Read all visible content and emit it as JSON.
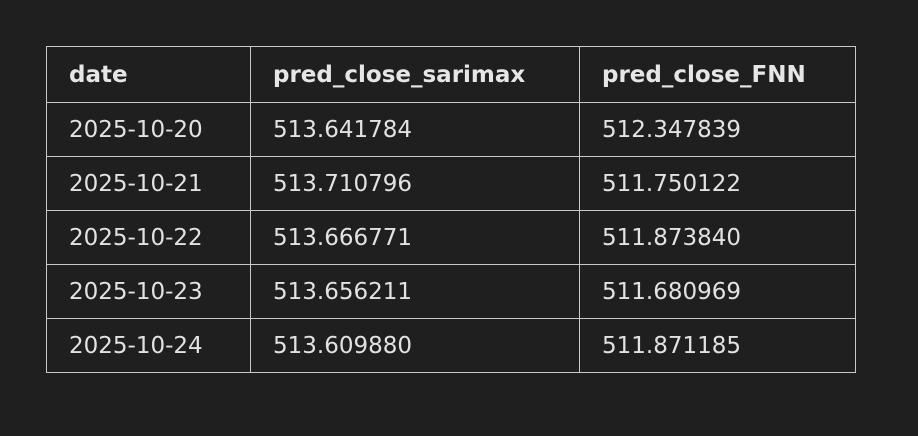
{
  "table": {
    "headers": [
      "date",
      "pred_close_sarimax",
      "pred_close_FNN"
    ],
    "rows": [
      [
        "2025-10-20",
        "513.641784",
        "512.347839"
      ],
      [
        "2025-10-21",
        "513.710796",
        "511.750122"
      ],
      [
        "2025-10-22",
        "513.666771",
        "511.873840"
      ],
      [
        "2025-10-23",
        "513.656211",
        "511.680969"
      ],
      [
        "2025-10-24",
        "513.609880",
        "511.871185"
      ]
    ]
  },
  "colors": {
    "background": "#1f1f1f",
    "border": "#c8c8c8",
    "text": "#e2e2e2"
  }
}
